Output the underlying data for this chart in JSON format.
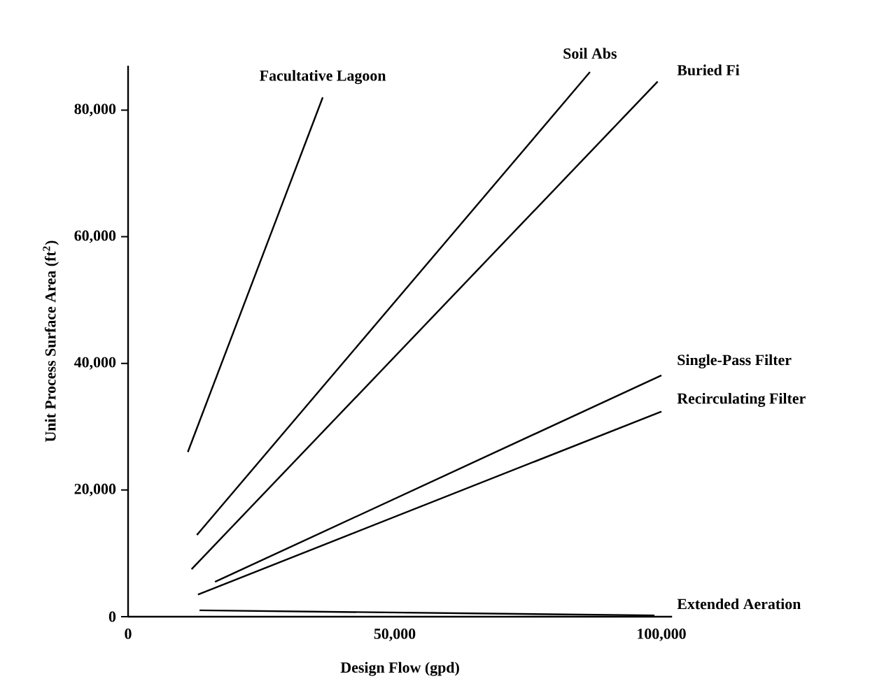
{
  "chart_data": {
    "type": "line",
    "xlabel": "Design Flow (gpd)",
    "ylabel": "Unit Process Surface Area (ft$^{2}$)",
    "xlim": [
      0,
      102000
    ],
    "ylim": [
      0,
      87000
    ],
    "xticks": [
      0,
      {
        "value": 50000,
        "label": "50,000"
      },
      {
        "value": 100000,
        "label": "100,000"
      }
    ],
    "yticks": [
      0,
      {
        "value": 20000,
        "label": "20,000"
      },
      {
        "value": 40000,
        "label": "40,000"
      },
      {
        "value": 60000,
        "label": "60,000"
      },
      {
        "value": 80000,
        "label": "80,000"
      }
    ],
    "series": [
      {
        "name": "Facultative Lagoon",
        "color": "#000000",
        "x": [
          11200,
          36500
        ],
        "values": [
          26000,
          82000
        ]
      },
      {
        "name": "Soil Abs",
        "color": "#000000",
        "x": [
          12900,
          86600
        ],
        "values": [
          12900,
          86000
        ]
      },
      {
        "name": "Buried Fi",
        "color": "#000000",
        "x": [
          11900,
          99300
        ],
        "values": [
          7500,
          84500
        ]
      },
      {
        "name": "Single-Pass Filter",
        "color": "#000000",
        "x": [
          16300,
          100000
        ],
        "values": [
          5500,
          38100
        ]
      },
      {
        "name": "Recirculating Filter",
        "color": "#000000",
        "x": [
          13100,
          100000
        ],
        "values": [
          3500,
          32400
        ]
      },
      {
        "name": "Extended Aeration",
        "color": "#000000",
        "x": [
          13400,
          98700
        ],
        "values": [
          1000,
          200
        ]
      }
    ]
  }
}
